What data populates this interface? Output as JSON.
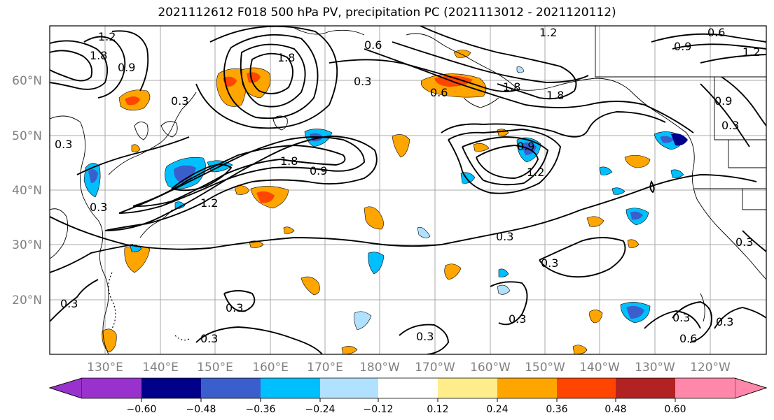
{
  "title": "2021112612 F018 500 hPa PV, precipitation PC (2021113012 - 2021120112)",
  "map": {
    "lat_labels": [
      "60°N",
      "50°N",
      "40°N",
      "30°N",
      "20°N"
    ],
    "lon_labels": [
      "130°E",
      "140°E",
      "150°E",
      "160°E",
      "170°E",
      "180°W",
      "170°W",
      "160°W",
      "150°W",
      "140°W",
      "130°W",
      "120°W"
    ],
    "contour_labels": [
      "1.2",
      "1.8",
      "0.6",
      "0.3",
      "0.9",
      "1.8",
      "1.2",
      "0.6",
      "0.9",
      "1.2",
      "0.3",
      "0.6",
      "1.8",
      "1.8",
      "0.9",
      "0.3",
      "1.8",
      "0.9",
      "1.2",
      "0.9",
      "1.2",
      "0.3",
      "0.3",
      "0.3",
      "0.3",
      "0.3",
      "0.3",
      "0.3",
      "0.3",
      "0.3",
      "0.3",
      "0.6",
      "0.3",
      "0.3"
    ]
  },
  "colorbar": {
    "ticks": [
      "−0.60",
      "−0.48",
      "−0.36",
      "−0.24",
      "−0.12",
      "0.12",
      "0.24",
      "0.36",
      "0.48",
      "0.60"
    ],
    "colors": [
      "#9932cc",
      "#00008b",
      "#3a5fcd",
      "#00bfff",
      "#b0e2ff",
      "#ffffff",
      "#ffec8b",
      "#ffa500",
      "#ff4500",
      "#b22222",
      "#ff88aa"
    ]
  }
}
